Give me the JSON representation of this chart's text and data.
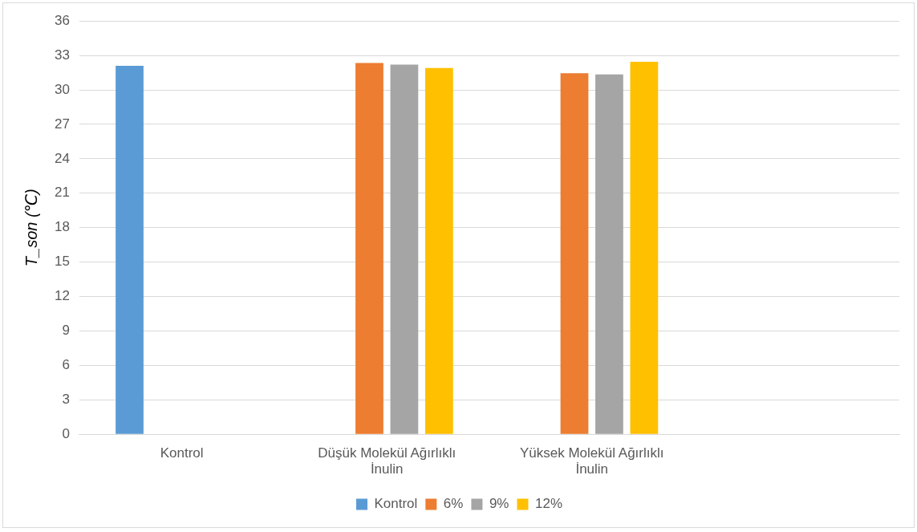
{
  "chart_data": {
    "type": "bar",
    "categories": [
      "Kontrol",
      "Düşük Molekül Ağırlıklı İnulin",
      "Yüksek Molekül Ağırlıklı İnulin",
      null
    ],
    "series": [
      {
        "name": "Kontrol",
        "color": "#5b9bd5",
        "values": [
          32.1,
          null,
          null,
          null
        ]
      },
      {
        "name": "6%",
        "color": "#ed7d31",
        "values": [
          null,
          32.35,
          31.45,
          null
        ]
      },
      {
        "name": "9%",
        "color": "#a5a5a5",
        "values": [
          null,
          32.2,
          31.35,
          null
        ]
      },
      {
        "name": "12%",
        "color": "#ffc000",
        "values": [
          null,
          31.9,
          32.45,
          null
        ]
      }
    ],
    "ylabel": "T_son (℃)",
    "ylim": [
      0,
      36
    ],
    "yticks": [
      0,
      3,
      6,
      9,
      12,
      15,
      18,
      21,
      24,
      27,
      30,
      33,
      36
    ],
    "grid": "y",
    "legend": "bottom"
  }
}
